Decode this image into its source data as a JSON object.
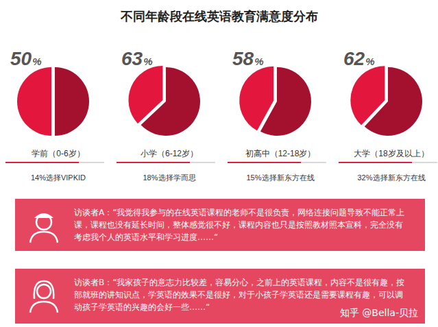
{
  "title": "不同年龄段在线英语教育满意度分布",
  "chart_data": [
    {
      "type": "pie",
      "title": "学前（0-6岁）",
      "subtitle": "14%选择VIPKID",
      "values": [
        50,
        50
      ],
      "value_labels": [
        "50%",
        null
      ],
      "data_labels": true,
      "colors": [
        "#a3112f",
        "#e3173e"
      ]
    },
    {
      "type": "pie",
      "title": "小学（6-12岁）",
      "subtitle": "18%选择学而思",
      "values": [
        63,
        37
      ],
      "value_labels": [
        "63%",
        null
      ],
      "data_labels": true,
      "colors": [
        "#a3112f",
        "#e3173e"
      ]
    },
    {
      "type": "pie",
      "title": "初高中（12-18岁）",
      "subtitle": "15%选择新东方在线",
      "values": [
        58,
        42
      ],
      "value_labels": [
        "58%",
        null
      ],
      "data_labels": true,
      "colors": [
        "#a3112f",
        "#e3173e"
      ]
    },
    {
      "type": "pie",
      "title": "大学（18岁及以上）",
      "subtitle": "32%选择新东方在线",
      "values": [
        62,
        38
      ],
      "value_labels": [
        "62%",
        null
      ],
      "data_labels": true,
      "colors": [
        "#a3112f",
        "#e3173e"
      ]
    }
  ],
  "interviews": [
    "访谈者A：“我觉得我参与的在线英语课程的老师不是很负责，网络连接问题导致不能正常上课，课程也没有延长时间，整体感觉很不好，课程内容也只是按照教材照本宣科，完全没有考虑我个人的英语水平和学习进度……“",
    "访谈者B：“我家孩子的意志力比较差，容易分心，之前上的英语课程，内容不是很有趣，按部就班的讲知识点，学英语的效果不是很好，对于小孩子学英语还是需要课程有趣，可以调动孩子学英语的兴趣的会好一些……“"
  ],
  "watermark": "知乎 @Bella-贝拉"
}
